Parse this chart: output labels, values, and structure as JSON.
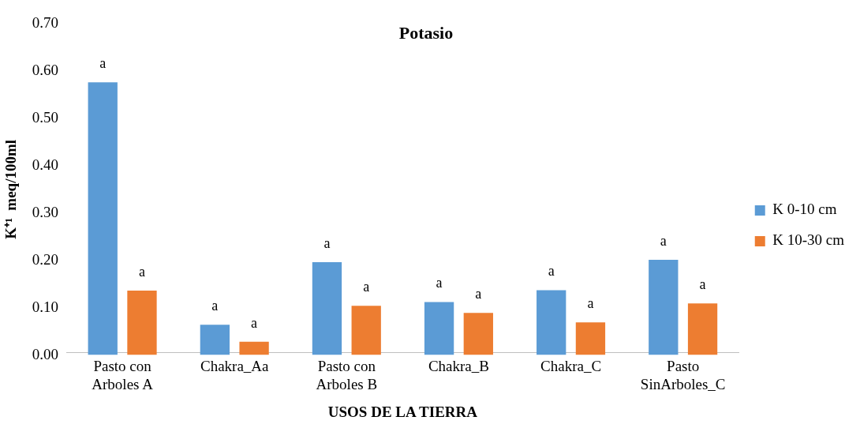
{
  "chart_data": {
    "type": "bar",
    "title": "Potasio",
    "xlabel": "USOS DE LA TIERRA",
    "ylabel": "K⁺¹  meq/100ml",
    "categories": [
      "Pasto con\nArboles A",
      "Chakra_Aa",
      "Pasto con\nArboles B",
      "Chakra_B",
      "Chakra_C",
      "Pasto\nSinArboles_C"
    ],
    "series": [
      {
        "name": "K 0-10 cm",
        "color": "#5b9bd5",
        "values": [
          0.576,
          0.064,
          0.196,
          0.112,
          0.137,
          0.201
        ],
        "value_labels": [
          "a",
          "a",
          "a",
          "a",
          "a",
          "a"
        ]
      },
      {
        "name": "K 10-30 cm",
        "color": "#ed7d31",
        "values": [
          0.136,
          0.028,
          0.104,
          0.089,
          0.069,
          0.109
        ],
        "value_labels": [
          "a",
          "a",
          "a",
          "a",
          "a",
          "a"
        ]
      }
    ],
    "ylim": [
      0,
      0.7
    ],
    "yticks": [
      {
        "value": 0,
        "label": "0.00"
      },
      {
        "value": 0.1,
        "label": "0.10"
      },
      {
        "value": 0.2,
        "label": "0.20"
      },
      {
        "value": 0.3,
        "label": "0.30"
      },
      {
        "value": 0.4,
        "label": "0.40"
      },
      {
        "value": 0.5,
        "label": "0.50"
      },
      {
        "value": 0.6,
        "label": "0.60"
      },
      {
        "value": 0.7,
        "label": "0.70"
      }
    ],
    "grid": false,
    "legend": "right"
  }
}
